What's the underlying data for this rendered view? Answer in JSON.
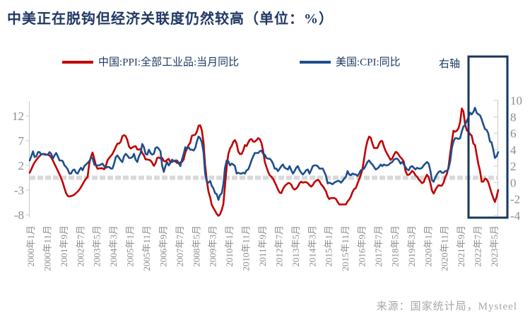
{
  "title": "中美正在脱钩但经济关联度仍然较高（单位：%）",
  "legend": {
    "items": [
      {
        "label": "中国:PPI:全部工业品:当月同比",
        "color": "#C00000"
      },
      {
        "label": "美国:CPI:同比",
        "color": "#1E4E8C"
      }
    ],
    "right_axis_note": "右轴"
  },
  "source": "来源：国家统计局，Mysteel",
  "colors": {
    "title": "#1F3864",
    "axis_labels": "#8C8C8C",
    "axis_line": "#C9C9C9",
    "zero_line": "#D9D9D9",
    "highlight_box": "#17365D",
    "source_text": "#A6A6A6"
  },
  "chart_data": {
    "type": "line",
    "title": "中美正在脱钩但经济关联度仍然较高（单位：%）",
    "x_frequency": "monthly",
    "x_start": "2000-01",
    "x_end": "2023-08",
    "x_tick_interval_months": 10,
    "x_tick_labels": [
      "2000年1月",
      "2000年11月",
      "2001年9月",
      "2002年7月",
      "2003年5月",
      "2004年3月",
      "2005年1月",
      "2005年11月",
      "2006年9月",
      "2007年7月",
      "2008年5月",
      "2009年3月",
      "2010年1月",
      "2010年11月",
      "2011年9月",
      "2012年7月",
      "2013年5月",
      "2014年3月",
      "2015年1月",
      "2015年11月",
      "2016年9月",
      "2017年7月",
      "2018年5月",
      "2019年3月",
      "2020年1月",
      "2020年11月",
      "2021年9月",
      "2022年7月",
      "2023年5月"
    ],
    "left_axis_ticks": [
      12,
      7,
      2,
      -3,
      -8
    ],
    "right_axis_ticks": [
      10,
      8,
      6,
      4,
      2,
      0,
      -2,
      -4
    ],
    "zero_line_value": 0,
    "highlight_region": {
      "x_from": "2022-02",
      "x_to": "2023-08"
    },
    "series": [
      {
        "name": "中国:PPI:全部工业品:当月同比",
        "axis": "left",
        "color": "#C00000",
        "values": [
          0.5,
          1.2,
          2.0,
          2.6,
          3.1,
          3.5,
          3.9,
          4.2,
          4.3,
          4.3,
          4.2,
          4.1,
          4.0,
          3.6,
          3.0,
          2.3,
          1.6,
          0.9,
          0.2,
          -0.6,
          -1.5,
          -2.6,
          -3.6,
          -4.2,
          -4.3,
          -4.2,
          -4.1,
          -3.9,
          -3.6,
          -3.3,
          -2.9,
          -2.4,
          -1.8,
          -1.2,
          -0.7,
          -0.3,
          2.4,
          3.7,
          4.6,
          3.3,
          2.0,
          1.3,
          1.4,
          1.4,
          1.4,
          1.2,
          1.9,
          3.0,
          3.5,
          3.9,
          4.3,
          5.0,
          5.7,
          6.4,
          6.4,
          6.8,
          7.9,
          8.1,
          7.9,
          7.1,
          5.8,
          5.4,
          5.6,
          5.8,
          5.9,
          5.2,
          5.2,
          5.3,
          4.5,
          4.0,
          3.2,
          3.2,
          3.1,
          3.0,
          2.5,
          1.9,
          2.4,
          3.5,
          3.6,
          3.4,
          3.5,
          2.9,
          2.8,
          3.1,
          3.3,
          2.6,
          2.7,
          2.9,
          2.8,
          2.5,
          2.4,
          2.6,
          2.7,
          3.2,
          4.6,
          5.4,
          6.1,
          6.6,
          8.0,
          8.1,
          8.2,
          8.8,
          10.0,
          10.1,
          9.1,
          6.6,
          2.0,
          -1.1,
          -3.3,
          -4.5,
          -6.0,
          -6.6,
          -7.2,
          -7.8,
          -8.2,
          -7.9,
          -7.0,
          -5.8,
          -2.1,
          1.7,
          4.3,
          5.4,
          5.9,
          6.8,
          7.1,
          6.4,
          4.8,
          4.3,
          4.3,
          5.0,
          6.1,
          5.9,
          6.6,
          7.2,
          7.3,
          6.8,
          6.8,
          7.1,
          7.5,
          7.3,
          6.5,
          5.0,
          2.7,
          1.7,
          0.7,
          0.0,
          -0.3,
          -0.7,
          -1.4,
          -2.1,
          -2.9,
          -3.5,
          -3.6,
          -2.8,
          -2.2,
          -1.9,
          -1.6,
          -1.6,
          -1.9,
          -2.6,
          -2.9,
          -2.7,
          -2.3,
          -1.6,
          -1.3,
          -1.5,
          -1.4,
          -1.4,
          -1.6,
          -2.0,
          -2.3,
          -2.0,
          -1.4,
          -1.1,
          -0.9,
          -1.2,
          -1.8,
          -2.2,
          -2.7,
          -3.3,
          -4.3,
          -4.8,
          -4.6,
          -4.6,
          -4.6,
          -4.8,
          -5.4,
          -5.9,
          -5.9,
          -5.9,
          -5.9,
          -5.9,
          -5.3,
          -4.9,
          -4.3,
          -3.4,
          -2.8,
          -2.6,
          -1.7,
          -0.8,
          0.1,
          1.2,
          3.3,
          5.5,
          6.9,
          7.8,
          7.6,
          6.4,
          5.5,
          5.5,
          5.5,
          6.3,
          6.9,
          6.9,
          5.8,
          4.9,
          4.3,
          3.7,
          3.1,
          3.4,
          4.1,
          4.7,
          4.6,
          4.1,
          3.6,
          3.3,
          2.7,
          0.9,
          0.1,
          0.1,
          0.4,
          0.9,
          0.6,
          0.0,
          -0.3,
          -0.8,
          -1.2,
          -1.6,
          -1.4,
          -0.5,
          0.1,
          -0.4,
          -1.5,
          -3.1,
          -3.7,
          -3.0,
          -2.4,
          -2.0,
          -2.1,
          -2.1,
          -1.5,
          -0.4,
          0.3,
          1.7,
          4.4,
          6.8,
          9.0,
          8.8,
          9.0,
          9.5,
          10.7,
          13.5,
          12.9,
          10.3,
          9.1,
          8.8,
          8.3,
          8.0,
          6.4,
          6.1,
          4.2,
          2.3,
          0.9,
          -1.3,
          -1.3,
          -0.7,
          -0.8,
          -1.4,
          -2.5,
          -3.6,
          -4.6,
          -5.4,
          -4.4,
          -3.0
        ]
      },
      {
        "name": "美国:CPI:同比",
        "axis": "right",
        "color": "#1E4E8C",
        "values": [
          2.7,
          3.2,
          3.8,
          3.1,
          3.2,
          3.7,
          3.7,
          3.4,
          3.5,
          3.4,
          3.4,
          3.4,
          3.7,
          3.5,
          2.9,
          3.3,
          3.6,
          3.2,
          2.7,
          2.7,
          2.6,
          2.1,
          1.9,
          1.6,
          1.1,
          1.1,
          1.5,
          1.6,
          1.2,
          1.1,
          1.5,
          1.8,
          1.5,
          2.0,
          2.2,
          2.4,
          2.6,
          3.0,
          3.0,
          2.2,
          2.1,
          2.1,
          2.1,
          2.2,
          2.3,
          2.0,
          1.8,
          1.9,
          1.9,
          1.7,
          1.7,
          2.3,
          3.1,
          3.3,
          3.0,
          2.7,
          2.5,
          3.2,
          3.5,
          3.3,
          3.0,
          3.0,
          3.1,
          3.5,
          2.8,
          2.5,
          3.2,
          3.6,
          4.7,
          4.3,
          3.5,
          3.4,
          4.0,
          3.6,
          3.4,
          3.5,
          4.2,
          4.3,
          4.1,
          3.8,
          2.1,
          1.3,
          2.0,
          2.5,
          2.1,
          2.4,
          2.8,
          2.6,
          2.7,
          2.7,
          2.4,
          2.0,
          2.8,
          3.5,
          4.3,
          4.1,
          4.3,
          4.0,
          4.0,
          3.9,
          4.2,
          5.0,
          5.6,
          5.4,
          4.9,
          3.7,
          1.1,
          0.1,
          0.0,
          0.2,
          -0.4,
          -0.7,
          -1.3,
          -1.4,
          -2.1,
          -1.5,
          -1.3,
          -0.2,
          1.8,
          2.7,
          2.6,
          2.1,
          2.3,
          2.2,
          2.0,
          1.1,
          1.2,
          1.1,
          1.1,
          1.2,
          1.1,
          1.5,
          1.6,
          2.1,
          2.7,
          3.2,
          3.6,
          3.6,
          3.6,
          3.8,
          3.9,
          3.5,
          3.4,
          3.0,
          2.9,
          2.9,
          2.7,
          2.3,
          1.7,
          1.7,
          1.4,
          1.7,
          2.0,
          2.2,
          1.8,
          1.7,
          1.6,
          2.0,
          1.5,
          1.1,
          1.4,
          1.8,
          2.0,
          1.5,
          1.2,
          1.0,
          1.2,
          1.5,
          1.6,
          1.1,
          1.5,
          2.0,
          2.1,
          2.1,
          2.0,
          1.7,
          1.7,
          1.7,
          1.3,
          0.8,
          -0.1,
          0.0,
          -0.1,
          -0.2,
          0.0,
          0.1,
          0.2,
          0.2,
          0.0,
          0.2,
          0.5,
          0.7,
          1.4,
          1.0,
          0.9,
          1.1,
          1.0,
          1.0,
          0.8,
          1.1,
          1.5,
          1.6,
          1.7,
          2.1,
          2.5,
          2.7,
          2.4,
          2.2,
          1.9,
          1.6,
          1.7,
          1.9,
          2.2,
          2.0,
          2.2,
          2.1,
          2.1,
          2.2,
          2.4,
          2.5,
          2.8,
          2.9,
          2.9,
          2.7,
          2.3,
          2.5,
          2.2,
          1.9,
          1.6,
          1.5,
          1.9,
          2.0,
          1.8,
          1.6,
          1.8,
          1.7,
          1.7,
          1.8,
          2.1,
          2.3,
          2.5,
          2.3,
          1.5,
          0.3,
          0.1,
          0.6,
          1.0,
          1.3,
          1.4,
          1.2,
          1.2,
          1.4,
          1.4,
          1.7,
          2.6,
          4.2,
          5.0,
          5.4,
          5.4,
          5.3,
          5.4,
          6.2,
          6.8,
          7.0,
          7.5,
          7.9,
          8.5,
          8.3,
          8.6,
          9.1,
          8.5,
          8.3,
          8.2,
          7.7,
          7.1,
          6.5,
          6.4,
          6.0,
          5.0,
          4.9,
          4.0,
          3.0,
          3.2,
          3.7
        ]
      }
    ]
  }
}
